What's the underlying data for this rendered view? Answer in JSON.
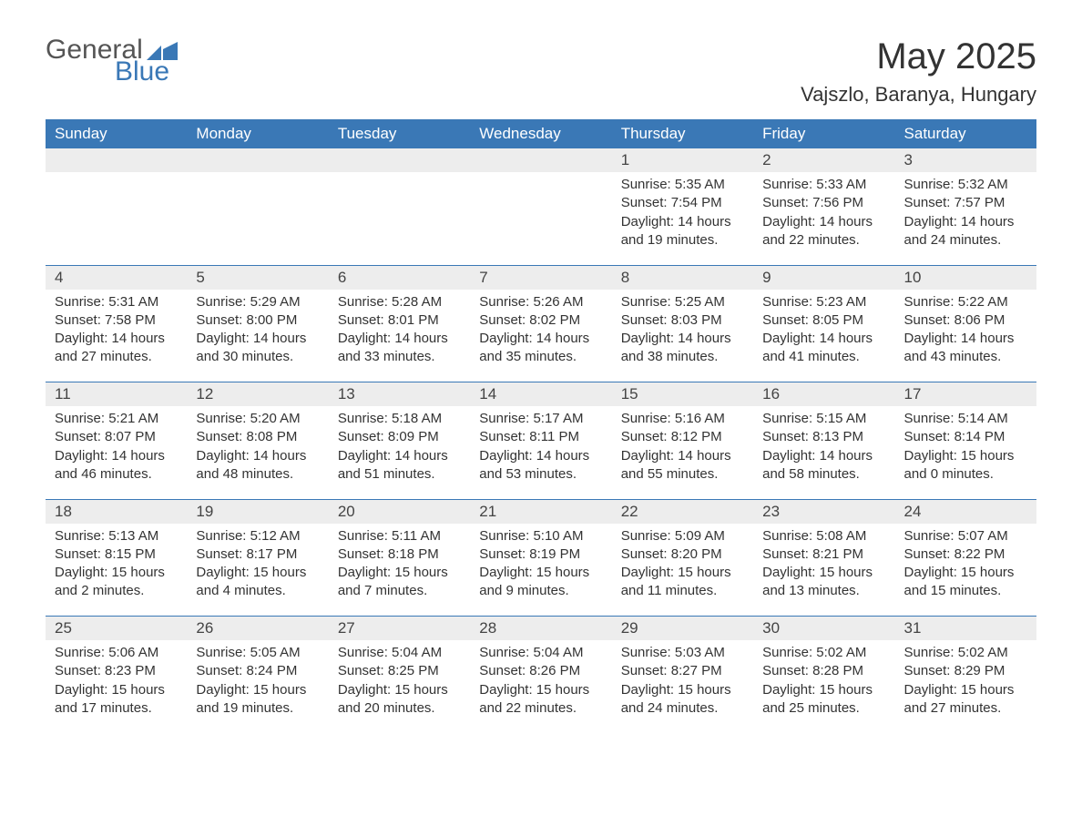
{
  "brand": {
    "word1": "General",
    "word2": "Blue"
  },
  "title": "May 2025",
  "subtitle": "Vajszlo, Baranya, Hungary",
  "colors": {
    "header_bg": "#3a78b6",
    "header_text": "#ffffff",
    "daynum_bg": "#ededed",
    "rule": "#3a78b6",
    "body_text": "#333333"
  },
  "weekdays": [
    "Sunday",
    "Monday",
    "Tuesday",
    "Wednesday",
    "Thursday",
    "Friday",
    "Saturday"
  ],
  "first_weekday_index": 4,
  "days": [
    {
      "n": 1,
      "sunrise": "5:35 AM",
      "sunset": "7:54 PM",
      "daylight": "14 hours and 19 minutes."
    },
    {
      "n": 2,
      "sunrise": "5:33 AM",
      "sunset": "7:56 PM",
      "daylight": "14 hours and 22 minutes."
    },
    {
      "n": 3,
      "sunrise": "5:32 AM",
      "sunset": "7:57 PM",
      "daylight": "14 hours and 24 minutes."
    },
    {
      "n": 4,
      "sunrise": "5:31 AM",
      "sunset": "7:58 PM",
      "daylight": "14 hours and 27 minutes."
    },
    {
      "n": 5,
      "sunrise": "5:29 AM",
      "sunset": "8:00 PM",
      "daylight": "14 hours and 30 minutes."
    },
    {
      "n": 6,
      "sunrise": "5:28 AM",
      "sunset": "8:01 PM",
      "daylight": "14 hours and 33 minutes."
    },
    {
      "n": 7,
      "sunrise": "5:26 AM",
      "sunset": "8:02 PM",
      "daylight": "14 hours and 35 minutes."
    },
    {
      "n": 8,
      "sunrise": "5:25 AM",
      "sunset": "8:03 PM",
      "daylight": "14 hours and 38 minutes."
    },
    {
      "n": 9,
      "sunrise": "5:23 AM",
      "sunset": "8:05 PM",
      "daylight": "14 hours and 41 minutes."
    },
    {
      "n": 10,
      "sunrise": "5:22 AM",
      "sunset": "8:06 PM",
      "daylight": "14 hours and 43 minutes."
    },
    {
      "n": 11,
      "sunrise": "5:21 AM",
      "sunset": "8:07 PM",
      "daylight": "14 hours and 46 minutes."
    },
    {
      "n": 12,
      "sunrise": "5:20 AM",
      "sunset": "8:08 PM",
      "daylight": "14 hours and 48 minutes."
    },
    {
      "n": 13,
      "sunrise": "5:18 AM",
      "sunset": "8:09 PM",
      "daylight": "14 hours and 51 minutes."
    },
    {
      "n": 14,
      "sunrise": "5:17 AM",
      "sunset": "8:11 PM",
      "daylight": "14 hours and 53 minutes."
    },
    {
      "n": 15,
      "sunrise": "5:16 AM",
      "sunset": "8:12 PM",
      "daylight": "14 hours and 55 minutes."
    },
    {
      "n": 16,
      "sunrise": "5:15 AM",
      "sunset": "8:13 PM",
      "daylight": "14 hours and 58 minutes."
    },
    {
      "n": 17,
      "sunrise": "5:14 AM",
      "sunset": "8:14 PM",
      "daylight": "15 hours and 0 minutes."
    },
    {
      "n": 18,
      "sunrise": "5:13 AM",
      "sunset": "8:15 PM",
      "daylight": "15 hours and 2 minutes."
    },
    {
      "n": 19,
      "sunrise": "5:12 AM",
      "sunset": "8:17 PM",
      "daylight": "15 hours and 4 minutes."
    },
    {
      "n": 20,
      "sunrise": "5:11 AM",
      "sunset": "8:18 PM",
      "daylight": "15 hours and 7 minutes."
    },
    {
      "n": 21,
      "sunrise": "5:10 AM",
      "sunset": "8:19 PM",
      "daylight": "15 hours and 9 minutes."
    },
    {
      "n": 22,
      "sunrise": "5:09 AM",
      "sunset": "8:20 PM",
      "daylight": "15 hours and 11 minutes."
    },
    {
      "n": 23,
      "sunrise": "5:08 AM",
      "sunset": "8:21 PM",
      "daylight": "15 hours and 13 minutes."
    },
    {
      "n": 24,
      "sunrise": "5:07 AM",
      "sunset": "8:22 PM",
      "daylight": "15 hours and 15 minutes."
    },
    {
      "n": 25,
      "sunrise": "5:06 AM",
      "sunset": "8:23 PM",
      "daylight": "15 hours and 17 minutes."
    },
    {
      "n": 26,
      "sunrise": "5:05 AM",
      "sunset": "8:24 PM",
      "daylight": "15 hours and 19 minutes."
    },
    {
      "n": 27,
      "sunrise": "5:04 AM",
      "sunset": "8:25 PM",
      "daylight": "15 hours and 20 minutes."
    },
    {
      "n": 28,
      "sunrise": "5:04 AM",
      "sunset": "8:26 PM",
      "daylight": "15 hours and 22 minutes."
    },
    {
      "n": 29,
      "sunrise": "5:03 AM",
      "sunset": "8:27 PM",
      "daylight": "15 hours and 24 minutes."
    },
    {
      "n": 30,
      "sunrise": "5:02 AM",
      "sunset": "8:28 PM",
      "daylight": "15 hours and 25 minutes."
    },
    {
      "n": 31,
      "sunrise": "5:02 AM",
      "sunset": "8:29 PM",
      "daylight": "15 hours and 27 minutes."
    }
  ],
  "labels": {
    "sunrise": "Sunrise:",
    "sunset": "Sunset:",
    "daylight": "Daylight:"
  }
}
